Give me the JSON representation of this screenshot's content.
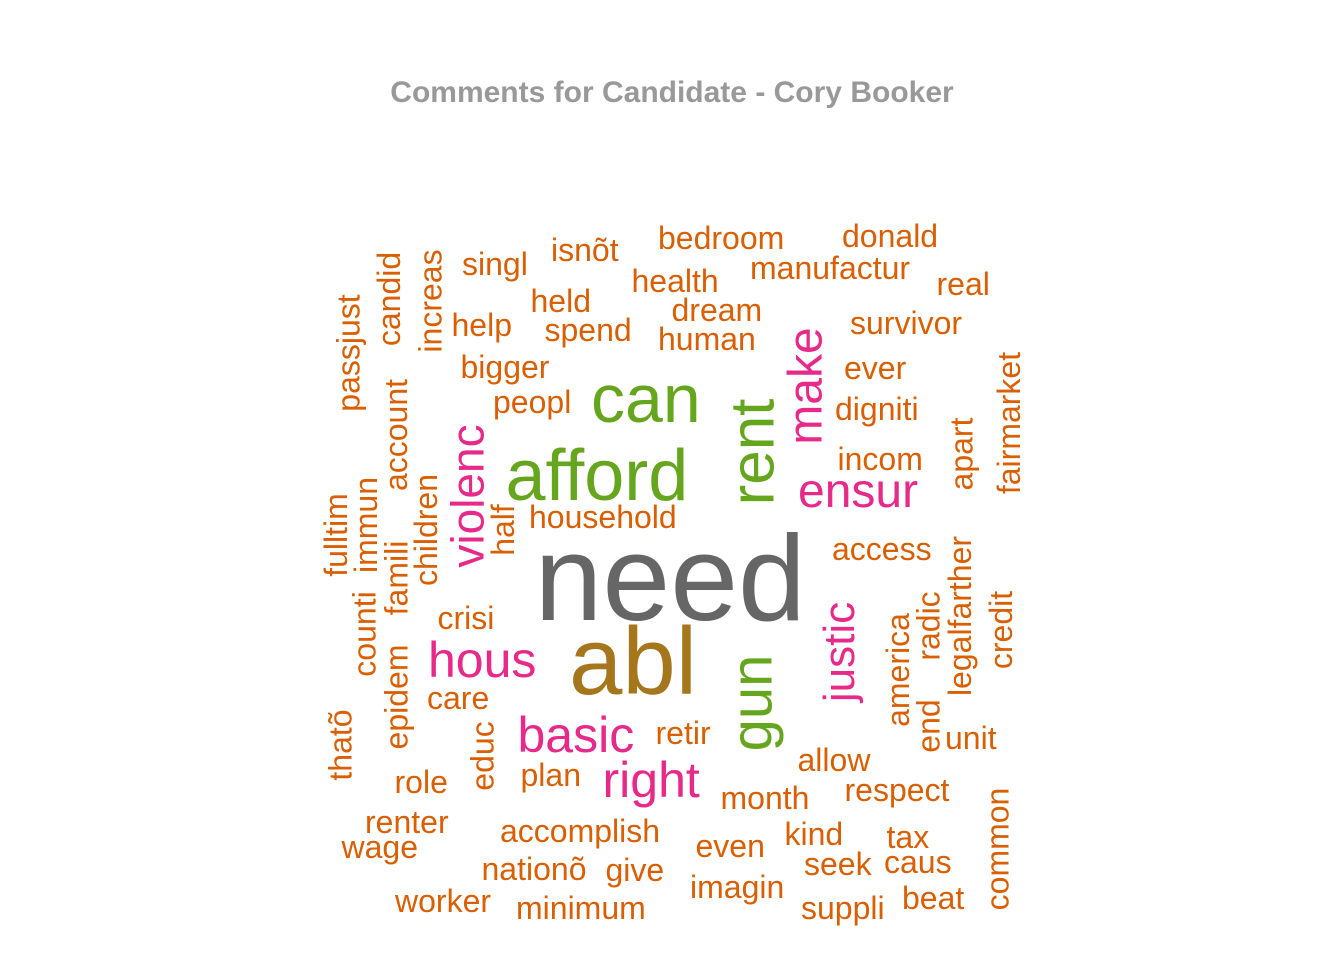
{
  "title": "Comments for Candidate - Cory Booker",
  "colors": {
    "gray": "#666666",
    "olive": "#a6761d",
    "green": "#66a61e",
    "pink": "#e7298a",
    "orange": "#d95f02",
    "title": "#999999"
  },
  "words": [
    {
      "text": "need",
      "color": "gray"
    },
    {
      "text": "abl",
      "color": "olive"
    },
    {
      "text": "afford",
      "color": "green"
    },
    {
      "text": "can",
      "color": "green"
    },
    {
      "text": "rent",
      "color": "green"
    },
    {
      "text": "gun",
      "color": "green"
    },
    {
      "text": "make",
      "color": "pink"
    },
    {
      "text": "ensur",
      "color": "pink"
    },
    {
      "text": "violenc",
      "color": "pink"
    },
    {
      "text": "hous",
      "color": "pink"
    },
    {
      "text": "basic",
      "color": "pink"
    },
    {
      "text": "right",
      "color": "pink"
    },
    {
      "text": "justic",
      "color": "pink"
    },
    {
      "text": "bedroom",
      "color": "orange"
    },
    {
      "text": "donald",
      "color": "orange"
    },
    {
      "text": "isnõt",
      "color": "orange"
    },
    {
      "text": "singl",
      "color": "orange"
    },
    {
      "text": "health",
      "color": "orange"
    },
    {
      "text": "manufactur",
      "color": "orange"
    },
    {
      "text": "real",
      "color": "orange"
    },
    {
      "text": "held",
      "color": "orange"
    },
    {
      "text": "dream",
      "color": "orange"
    },
    {
      "text": "help",
      "color": "orange"
    },
    {
      "text": "spend",
      "color": "orange"
    },
    {
      "text": "human",
      "color": "orange"
    },
    {
      "text": "survivor",
      "color": "orange"
    },
    {
      "text": "bigger",
      "color": "orange"
    },
    {
      "text": "ever",
      "color": "orange"
    },
    {
      "text": "peopl",
      "color": "orange"
    },
    {
      "text": "digniti",
      "color": "orange"
    },
    {
      "text": "incom",
      "color": "orange"
    },
    {
      "text": "household",
      "color": "orange"
    },
    {
      "text": "half",
      "color": "orange"
    },
    {
      "text": "access",
      "color": "orange"
    },
    {
      "text": "crisi",
      "color": "orange"
    },
    {
      "text": "care",
      "color": "orange"
    },
    {
      "text": "retir",
      "color": "orange"
    },
    {
      "text": "allow",
      "color": "orange"
    },
    {
      "text": "unit",
      "color": "orange"
    },
    {
      "text": "plan",
      "color": "orange"
    },
    {
      "text": "role",
      "color": "orange"
    },
    {
      "text": "month",
      "color": "orange"
    },
    {
      "text": "respect",
      "color": "orange"
    },
    {
      "text": "renter",
      "color": "orange"
    },
    {
      "text": "wage",
      "color": "orange"
    },
    {
      "text": "accomplish",
      "color": "orange"
    },
    {
      "text": "kind",
      "color": "orange"
    },
    {
      "text": "tax",
      "color": "orange"
    },
    {
      "text": "even",
      "color": "orange"
    },
    {
      "text": "nationõ",
      "color": "orange"
    },
    {
      "text": "give",
      "color": "orange"
    },
    {
      "text": "seek",
      "color": "orange"
    },
    {
      "text": "caus",
      "color": "orange"
    },
    {
      "text": "imagin",
      "color": "orange"
    },
    {
      "text": "worker",
      "color": "orange"
    },
    {
      "text": "minimum",
      "color": "orange"
    },
    {
      "text": "suppli",
      "color": "orange"
    },
    {
      "text": "beat",
      "color": "orange"
    },
    {
      "text": "passjust",
      "color": "orange"
    },
    {
      "text": "candid",
      "color": "orange"
    },
    {
      "text": "increas",
      "color": "orange"
    },
    {
      "text": "account",
      "color": "orange"
    },
    {
      "text": "fulltim",
      "color": "orange"
    },
    {
      "text": "immun",
      "color": "orange"
    },
    {
      "text": "children",
      "color": "orange"
    },
    {
      "text": "famili",
      "color": "orange"
    },
    {
      "text": "counti",
      "color": "orange"
    },
    {
      "text": "epidem",
      "color": "orange"
    },
    {
      "text": "thatõ",
      "color": "orange"
    },
    {
      "text": "educ",
      "color": "orange"
    },
    {
      "text": "america",
      "color": "orange"
    },
    {
      "text": "radic",
      "color": "orange"
    },
    {
      "text": "end",
      "color": "orange"
    },
    {
      "text": "legalfarther",
      "color": "orange"
    },
    {
      "text": "apart",
      "color": "orange"
    },
    {
      "text": "fairmarket",
      "color": "orange"
    },
    {
      "text": "credit",
      "color": "orange"
    },
    {
      "text": "common",
      "color": "orange"
    }
  ]
}
